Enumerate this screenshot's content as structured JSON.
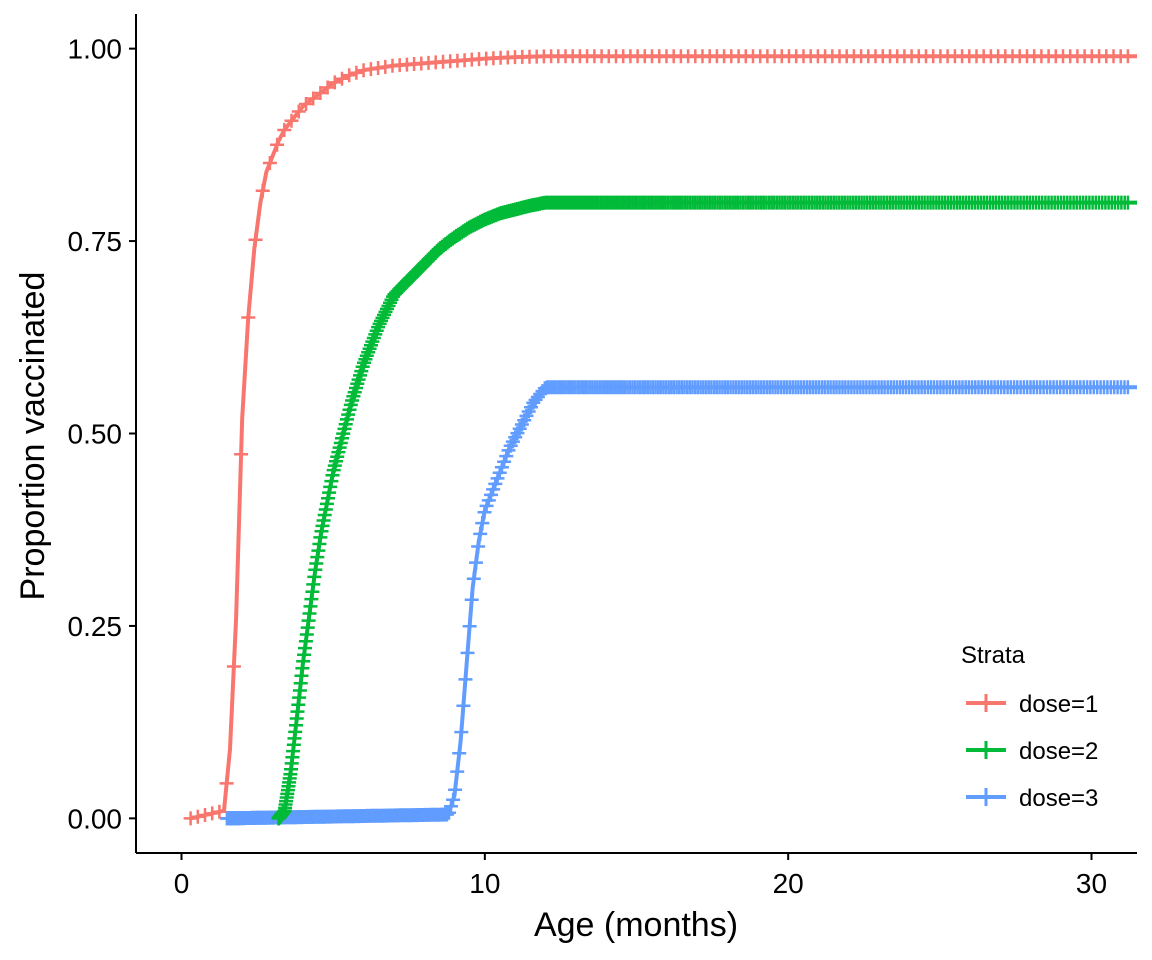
{
  "chart_data": {
    "type": "line",
    "title": "",
    "xlabel": "Age (months)",
    "ylabel": "Proportion vaccinated",
    "xlim": [
      -1.5,
      31.5
    ],
    "ylim": [
      -0.045,
      1.045
    ],
    "x_ticks": [
      0,
      10,
      20,
      30
    ],
    "x_tick_labels": [
      "0",
      "10",
      "20",
      "30"
    ],
    "y_ticks": [
      0,
      0.25,
      0.5,
      0.75,
      1.0
    ],
    "y_tick_labels": [
      "0.00",
      "0.25",
      "0.50",
      "0.75",
      "1.00"
    ],
    "grid": false,
    "legend": {
      "title": "Strata",
      "position": "bottom-right",
      "entries": [
        "dose=1",
        "dose=2",
        "dose=3"
      ]
    },
    "censor_marks": true,
    "series": [
      {
        "name": "dose=1",
        "color": "#F8766D",
        "x": [
          0.3,
          1.4,
          1.6,
          1.8,
          2.0,
          2.2,
          2.4,
          2.6,
          2.8,
          3.0,
          3.2,
          3.4,
          3.6,
          3.8,
          4.0,
          4.5,
          5.0,
          5.5,
          6.0,
          7.0,
          8.0,
          9.0,
          10.0,
          11.0,
          12.0,
          15.0,
          20.0,
          25.0,
          31.5
        ],
        "y": [
          0.0,
          0.01,
          0.09,
          0.26,
          0.52,
          0.65,
          0.74,
          0.8,
          0.84,
          0.86,
          0.88,
          0.895,
          0.905,
          0.915,
          0.925,
          0.94,
          0.955,
          0.965,
          0.972,
          0.978,
          0.981,
          0.984,
          0.987,
          0.989,
          0.99,
          0.99,
          0.99,
          0.99,
          0.99
        ]
      },
      {
        "name": "dose=2",
        "color": "#00BA38",
        "x": [
          3.2,
          3.4,
          3.6,
          3.8,
          4.0,
          4.2,
          4.4,
          4.6,
          4.8,
          5.0,
          5.2,
          5.4,
          5.6,
          6.0,
          6.5,
          7.0,
          7.5,
          8.0,
          8.5,
          9.0,
          9.5,
          10.0,
          10.5,
          11.0,
          11.5,
          12.0,
          15.0,
          20.0,
          25.0,
          31.5
        ],
        "y": [
          0.0,
          0.01,
          0.06,
          0.13,
          0.2,
          0.26,
          0.32,
          0.37,
          0.41,
          0.45,
          0.48,
          0.51,
          0.54,
          0.59,
          0.64,
          0.68,
          0.7,
          0.72,
          0.74,
          0.755,
          0.768,
          0.778,
          0.786,
          0.791,
          0.796,
          0.8,
          0.8,
          0.8,
          0.8,
          0.8
        ]
      },
      {
        "name": "dose=3",
        "color": "#619CFF",
        "x": [
          1.5,
          8.8,
          9.0,
          9.2,
          9.4,
          9.6,
          9.8,
          10.0,
          10.4,
          10.8,
          11.2,
          11.6,
          12.0,
          15.0,
          20.0,
          25.0,
          31.5
        ],
        "y": [
          0.0,
          0.005,
          0.03,
          0.1,
          0.2,
          0.3,
          0.36,
          0.4,
          0.44,
          0.48,
          0.51,
          0.54,
          0.56,
          0.56,
          0.56,
          0.56,
          0.56
        ]
      }
    ]
  }
}
